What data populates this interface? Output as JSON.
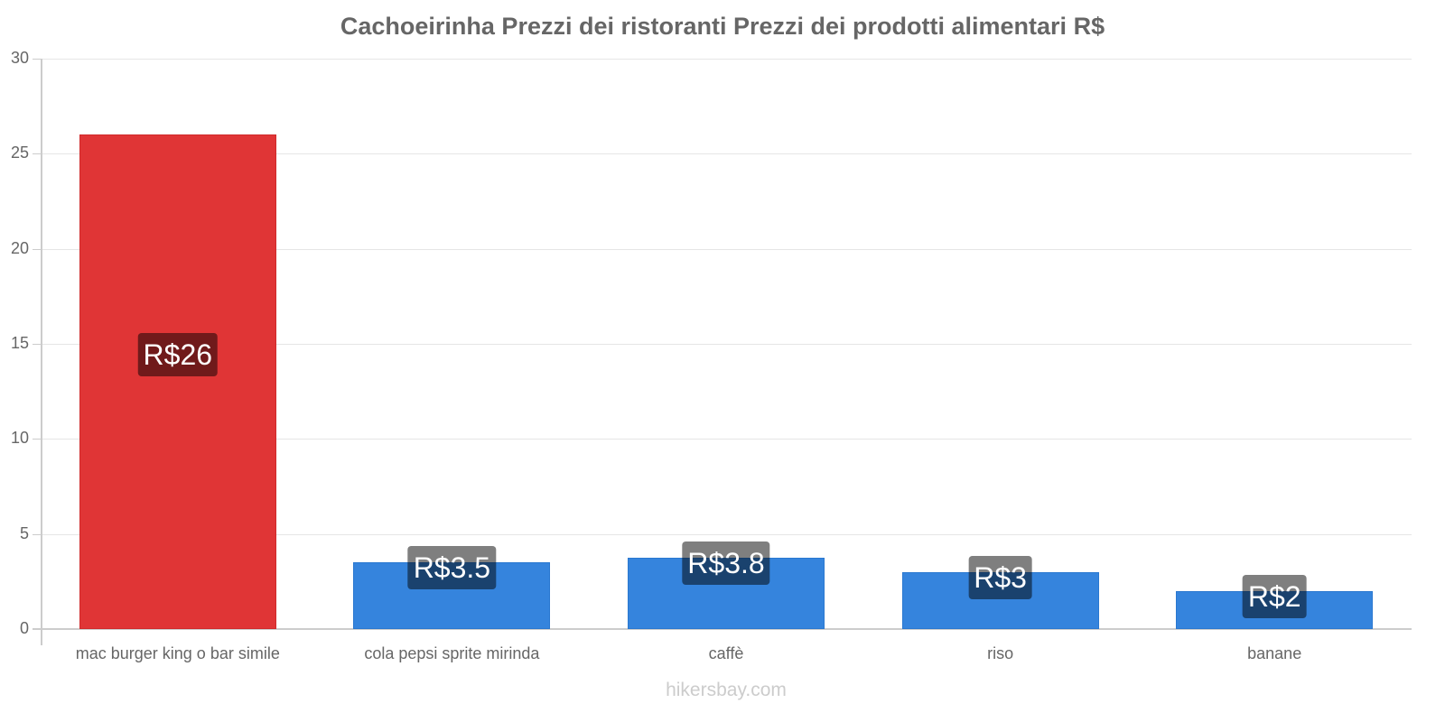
{
  "chart_data": {
    "type": "bar",
    "title": "Cachoeirinha Prezzi dei ristoranti Prezzi dei prodotti alimentari R$",
    "xlabel": "",
    "ylabel": "",
    "ylim": [
      0,
      30
    ],
    "yticks": [
      "0",
      "5",
      "10",
      "15",
      "20",
      "25",
      "30"
    ],
    "grid": true,
    "categories": [
      "mac burger king o bar simile",
      "cola pepsi sprite mirinda",
      "caffè",
      "riso",
      "banane"
    ],
    "values": [
      26,
      3.5,
      3.75,
      3,
      2
    ],
    "data_labels": [
      "R$26",
      "R$3.5",
      "R$3.8",
      "R$3",
      "R$2"
    ],
    "colors": [
      "#e03536",
      "#3584dd",
      "#3584dd",
      "#3584dd",
      "#3584dd"
    ]
  },
  "footer": {
    "watermark": "hikersbay.com"
  }
}
